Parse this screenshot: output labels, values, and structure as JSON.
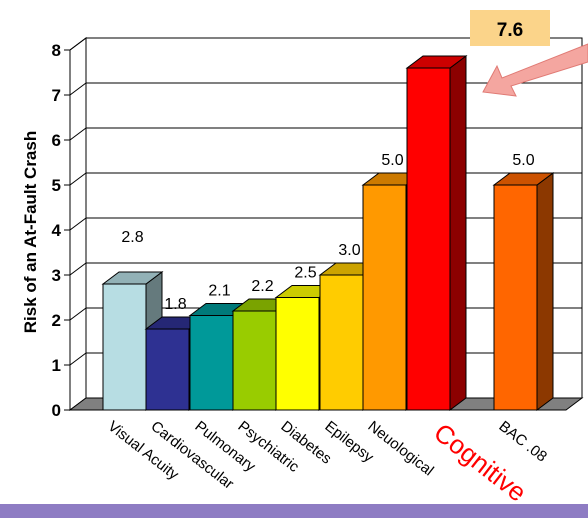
{
  "chart_data": {
    "type": "bar",
    "title": "",
    "xlabel": "",
    "ylabel": "Risk of an At-Fault Crash",
    "ylim": [
      0,
      8
    ],
    "yticks": [
      "0",
      "1",
      "2",
      "3",
      "4",
      "5",
      "6",
      "7",
      "8"
    ],
    "grid": true,
    "categories": [
      "Visual Acuity",
      "Cardiovascular",
      "Pulmonary",
      "Psychiatric",
      "Diabetes",
      "Epilepsy",
      "Neuological",
      "",
      "BAC .08"
    ],
    "values": [
      2.8,
      1.8,
      2.1,
      2.2,
      2.5,
      3.0,
      5.0,
      7.6,
      5.0
    ],
    "value_labels": [
      "2.8",
      "1.8",
      "2.1",
      "2.2",
      "2.5",
      "3.0",
      "5.0",
      "",
      "5.0"
    ],
    "bar_colors": [
      "#b7dde3",
      "#2e3192",
      "#009999",
      "#99cc00",
      "#ffff00",
      "#ffcc00",
      "#ff9900",
      "#ff0000",
      "#ff6600"
    ],
    "category_label": "Cognitive",
    "category_label_color": "#ff0000",
    "callout": {
      "text": "7.6",
      "background": "#fbd48a",
      "arrow_color": "#f4a6a0"
    }
  }
}
